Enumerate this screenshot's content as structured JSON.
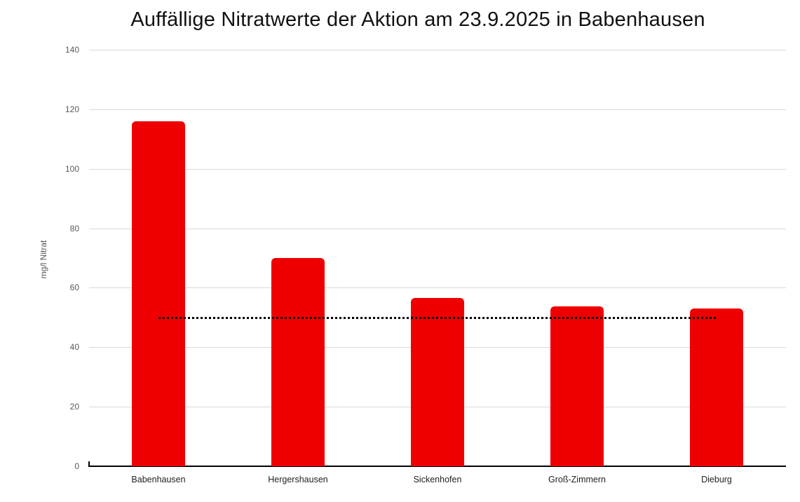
{
  "chart_data": {
    "type": "bar",
    "title": "Auffällige Nitratwerte der Aktion am 23.9.2025 in Babenhausen",
    "xlabel": "",
    "ylabel": "mg/l Nitrat",
    "categories": [
      "Babenhausen",
      "Hergershausen",
      "Sickenhofen",
      "Groß-Zimmern",
      "Dieburg"
    ],
    "values": [
      116,
      70,
      56.6,
      53.7,
      53
    ],
    "ylim": [
      0,
      140
    ],
    "yticks": [
      "0",
      "20",
      "40",
      "60",
      "80",
      "100",
      "120",
      "140"
    ],
    "grid": true,
    "legend": "none",
    "bar_color": "#ee0000",
    "reference_line": {
      "value": 50,
      "style": "dotted",
      "color": "#000000"
    }
  }
}
